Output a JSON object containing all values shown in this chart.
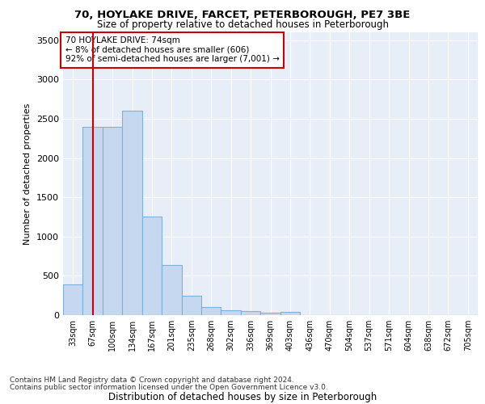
{
  "title1": "70, HOYLAKE DRIVE, FARCET, PETERBOROUGH, PE7 3BE",
  "title2": "Size of property relative to detached houses in Peterborough",
  "xlabel": "Distribution of detached houses by size in Peterborough",
  "ylabel": "Number of detached properties",
  "categories": [
    "33sqm",
    "67sqm",
    "100sqm",
    "134sqm",
    "167sqm",
    "201sqm",
    "235sqm",
    "268sqm",
    "302sqm",
    "336sqm",
    "369sqm",
    "403sqm",
    "436sqm",
    "470sqm",
    "504sqm",
    "537sqm",
    "571sqm",
    "604sqm",
    "638sqm",
    "672sqm",
    "705sqm"
  ],
  "values": [
    390,
    2400,
    2400,
    2600,
    1250,
    640,
    250,
    105,
    60,
    50,
    35,
    40,
    0,
    0,
    0,
    0,
    0,
    0,
    0,
    0,
    0
  ],
  "bar_color": "#c5d8f0",
  "bar_edge_color": "#7fb0d8",
  "red_line_x": 1,
  "annotation_text": "70 HOYLAKE DRIVE: 74sqm\n← 8% of detached houses are smaller (606)\n92% of semi-detached houses are larger (7,001) →",
  "annotation_box_color": "#ffffff",
  "annotation_box_edge": "#cc0000",
  "red_line_color": "#cc0000",
  "ylim": [
    0,
    3600
  ],
  "yticks": [
    0,
    500,
    1000,
    1500,
    2000,
    2500,
    3000,
    3500
  ],
  "background_color": "#e8eef8",
  "footer_line1": "Contains HM Land Registry data © Crown copyright and database right 2024.",
  "footer_line2": "Contains public sector information licensed under the Open Government Licence v3.0."
}
